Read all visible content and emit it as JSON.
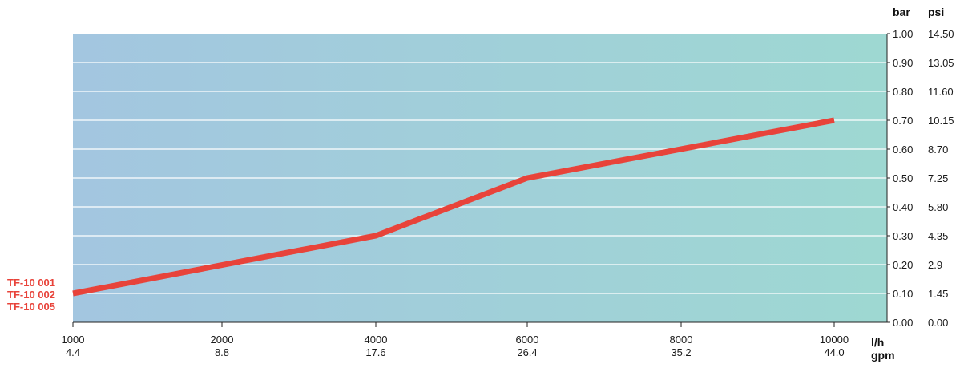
{
  "chart_data": {
    "type": "line",
    "x_primary_unit": "l/h",
    "x_secondary_unit": "gpm",
    "y_primary_unit": "bar",
    "y_secondary_unit": "psi",
    "x_ticks": [
      {
        "lh": "1000",
        "gpm": "4.4"
      },
      {
        "lh": "2000",
        "gpm": "8.8"
      },
      {
        "lh": "4000",
        "gpm": "17.6"
      },
      {
        "lh": "6000",
        "gpm": "26.4"
      },
      {
        "lh": "8000",
        "gpm": "35.2"
      },
      {
        "lh": "10000",
        "gpm": "44.0"
      }
    ],
    "y_ticks": [
      {
        "bar": "0.00",
        "psi": "0.00"
      },
      {
        "bar": "0.10",
        "psi": "1.45"
      },
      {
        "bar": "0.20",
        "psi": "2.9"
      },
      {
        "bar": "0.30",
        "psi": "4.35"
      },
      {
        "bar": "0.40",
        "psi": "5.80"
      },
      {
        "bar": "0.50",
        "psi": "7.25"
      },
      {
        "bar": "0.60",
        "psi": "8.70"
      },
      {
        "bar": "0.70",
        "psi": "10.15"
      },
      {
        "bar": "0.80",
        "psi": "11.60"
      },
      {
        "bar": "0.90",
        "psi": "13.05"
      },
      {
        "bar": "1.00",
        "psi": "14.50"
      }
    ],
    "ylim": [
      0,
      1.0
    ],
    "grid": true,
    "series": [
      {
        "name": "TF-10 001",
        "points": [
          {
            "x": 1000,
            "y": 0.1
          },
          {
            "x": 4000,
            "y": 0.3
          },
          {
            "x": 6000,
            "y": 0.5
          },
          {
            "x": 10000,
            "y": 0.7
          }
        ]
      }
    ],
    "legend_entries": [
      "TF-10 001",
      "TF-10 002",
      "TF-10 005"
    ],
    "legend_position": "left"
  },
  "colors": {
    "line": "#e8433a",
    "legend_text": "#e8433a",
    "plot_gradient_left": "#a3c6e0",
    "plot_gradient_right": "#9ed8d2",
    "grid": "#ffffff",
    "axis": "#222222"
  }
}
